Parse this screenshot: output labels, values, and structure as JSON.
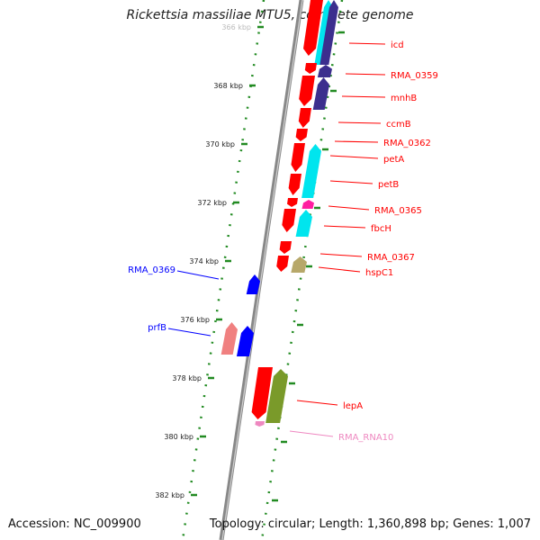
{
  "title": "Rickettsia massiliae MTU5, complete genome",
  "footer": {
    "accession": "Accession: NC_009900",
    "topology": "Topology: circular; Length: 1,360,898 bp; Genes: 1,007"
  },
  "scale": {
    "ticks": [
      "366 kbp",
      "368 kbp",
      "370 kbp",
      "372 kbp",
      "374 kbp",
      "376 kbp",
      "378 kbp",
      "380 kbp",
      "382 kbp"
    ]
  },
  "colors": {
    "red": "#ff0000",
    "cyan": "#00e5ee",
    "navy": "#3c2f8e",
    "blue": "#0000ff",
    "olive": "#7a9a2a",
    "khaki": "#b7a86a",
    "magenta": "#ff1fa0",
    "pink_rna": "#ee88c0",
    "salmon": "#f08080",
    "backbone": "#888888",
    "tick_green": "#228b22"
  },
  "genes_right": [
    "icd",
    "RMA_0359",
    "mnhB",
    "ccmB",
    "RMA_0362",
    "petA",
    "petB",
    "RMA_0365",
    "fbcH",
    "RMA_0367",
    "hspC1",
    "lepA",
    "RMA_RNA10"
  ],
  "genes_left": [
    "RMA_0369",
    "prfB"
  ]
}
